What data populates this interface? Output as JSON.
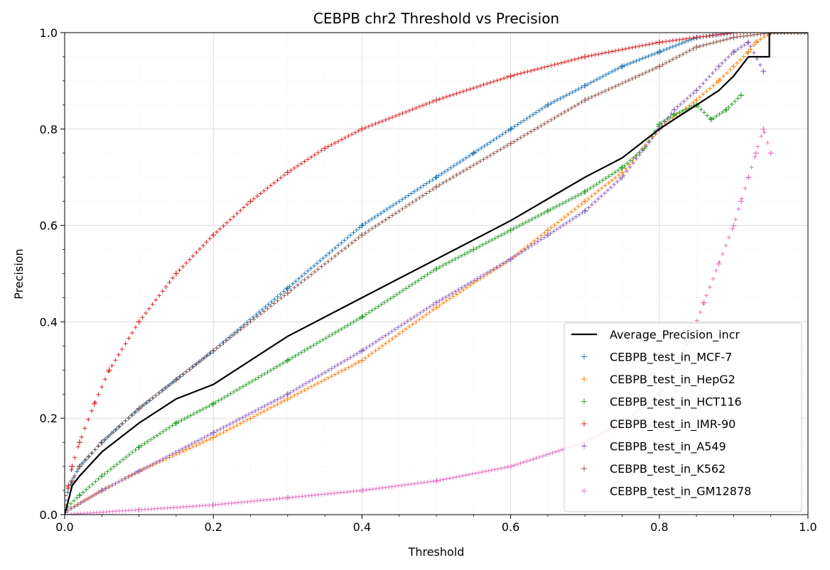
{
  "chart_data": {
    "type": "scatter",
    "title": "CEBPB chr2 Threshold vs Precision",
    "xlabel": "Threshold",
    "ylabel": "Precision",
    "xlim": [
      0.0,
      1.0
    ],
    "ylim": [
      0.0,
      1.0
    ],
    "xticks": [
      "0.0",
      "0.2",
      "0.4",
      "0.6",
      "0.8",
      "1.0"
    ],
    "yticks": [
      "0.0",
      "0.2",
      "0.4",
      "0.6",
      "0.8",
      "1.0"
    ],
    "grid": true,
    "legend_position": "lower-right",
    "series": [
      {
        "name": "Average_Precision_incr",
        "kind": "line",
        "color": "#000000",
        "x": [
          0.0,
          0.01,
          0.02,
          0.05,
          0.1,
          0.15,
          0.2,
          0.3,
          0.4,
          0.5,
          0.6,
          0.7,
          0.75,
          0.8,
          0.85,
          0.88,
          0.9,
          0.92,
          0.93,
          0.948,
          0.948,
          1.0
        ],
        "y": [
          0.0,
          0.06,
          0.08,
          0.13,
          0.19,
          0.24,
          0.27,
          0.37,
          0.45,
          0.53,
          0.61,
          0.7,
          0.74,
          0.8,
          0.85,
          0.88,
          0.91,
          0.95,
          0.95,
          0.95,
          1.0,
          1.0
        ]
      },
      {
        "name": "CEBPB_test_in_MCF-7",
        "kind": "marker",
        "color": "#1f77b4",
        "x": [
          0.0,
          0.01,
          0.02,
          0.05,
          0.1,
          0.15,
          0.2,
          0.3,
          0.4,
          0.5,
          0.55,
          0.6,
          0.65,
          0.7,
          0.75,
          0.8,
          0.85,
          0.9
        ],
        "y": [
          0.03,
          0.07,
          0.1,
          0.15,
          0.22,
          0.28,
          0.34,
          0.47,
          0.6,
          0.7,
          0.75,
          0.8,
          0.85,
          0.89,
          0.93,
          0.96,
          0.99,
          1.0
        ]
      },
      {
        "name": "CEBPB_test_in_HepG2",
        "kind": "marker",
        "color": "#ff7f0e",
        "x": [
          0.0,
          0.05,
          0.1,
          0.2,
          0.3,
          0.4,
          0.5,
          0.6,
          0.65,
          0.7,
          0.75,
          0.8,
          0.85,
          0.88,
          0.9,
          0.92,
          0.93,
          0.95,
          1.0
        ],
        "y": [
          0.005,
          0.05,
          0.09,
          0.16,
          0.24,
          0.32,
          0.43,
          0.53,
          0.59,
          0.65,
          0.71,
          0.8,
          0.86,
          0.9,
          0.93,
          0.96,
          0.98,
          1.0,
          1.0
        ]
      },
      {
        "name": "CEBPB_test_in_HCT116",
        "kind": "marker",
        "color": "#2ca02c",
        "x": [
          0.0,
          0.02,
          0.05,
          0.1,
          0.15,
          0.2,
          0.3,
          0.4,
          0.5,
          0.55,
          0.6,
          0.65,
          0.7,
          0.75,
          0.78,
          0.8,
          0.82,
          0.85,
          0.87,
          0.89,
          0.91
        ],
        "y": [
          0.01,
          0.04,
          0.08,
          0.14,
          0.19,
          0.23,
          0.32,
          0.41,
          0.51,
          0.55,
          0.59,
          0.63,
          0.67,
          0.72,
          0.76,
          0.81,
          0.83,
          0.85,
          0.82,
          0.84,
          0.87
        ]
      },
      {
        "name": "CEBPB_test_in_IMR-90",
        "kind": "marker",
        "color": "#d62728",
        "x": [
          0.0,
          0.005,
          0.01,
          0.02,
          0.04,
          0.06,
          0.1,
          0.15,
          0.2,
          0.25,
          0.3,
          0.35,
          0.4,
          0.5,
          0.6,
          0.7,
          0.8,
          0.9,
          1.0
        ],
        "y": [
          0.02,
          0.06,
          0.1,
          0.15,
          0.23,
          0.3,
          0.4,
          0.5,
          0.58,
          0.65,
          0.71,
          0.76,
          0.8,
          0.86,
          0.91,
          0.95,
          0.98,
          1.0,
          1.0
        ]
      },
      {
        "name": "CEBPB_test_in_A549",
        "kind": "marker",
        "color": "#9467bd",
        "x": [
          0.0,
          0.05,
          0.1,
          0.2,
          0.3,
          0.4,
          0.5,
          0.6,
          0.65,
          0.7,
          0.75,
          0.8,
          0.82,
          0.85,
          0.88,
          0.9,
          0.92,
          0.94
        ],
        "y": [
          0.005,
          0.05,
          0.09,
          0.17,
          0.25,
          0.34,
          0.44,
          0.53,
          0.58,
          0.63,
          0.7,
          0.8,
          0.84,
          0.88,
          0.93,
          0.96,
          0.98,
          0.92
        ]
      },
      {
        "name": "CEBPB_test_in_K562",
        "kind": "marker",
        "color": "#8c564b",
        "x": [
          0.0,
          0.01,
          0.02,
          0.05,
          0.1,
          0.15,
          0.2,
          0.3,
          0.4,
          0.5,
          0.6,
          0.7,
          0.8,
          0.85,
          0.9,
          0.95,
          1.0
        ],
        "y": [
          0.04,
          0.07,
          0.1,
          0.15,
          0.22,
          0.28,
          0.34,
          0.46,
          0.58,
          0.68,
          0.77,
          0.86,
          0.93,
          0.97,
          0.99,
          1.0,
          1.0
        ]
      },
      {
        "name": "CEBPB_test_in_GM12878",
        "kind": "marker",
        "color": "#e377c2",
        "x": [
          0.0,
          0.1,
          0.2,
          0.3,
          0.4,
          0.5,
          0.6,
          0.7,
          0.75,
          0.8,
          0.82,
          0.84,
          0.86,
          0.88,
          0.9,
          0.91,
          0.92,
          0.93,
          0.94,
          0.95
        ],
        "y": [
          0.0,
          0.01,
          0.02,
          0.035,
          0.05,
          0.07,
          0.1,
          0.15,
          0.19,
          0.25,
          0.3,
          0.36,
          0.44,
          0.52,
          0.6,
          0.65,
          0.7,
          0.75,
          0.8,
          0.75
        ]
      }
    ]
  }
}
